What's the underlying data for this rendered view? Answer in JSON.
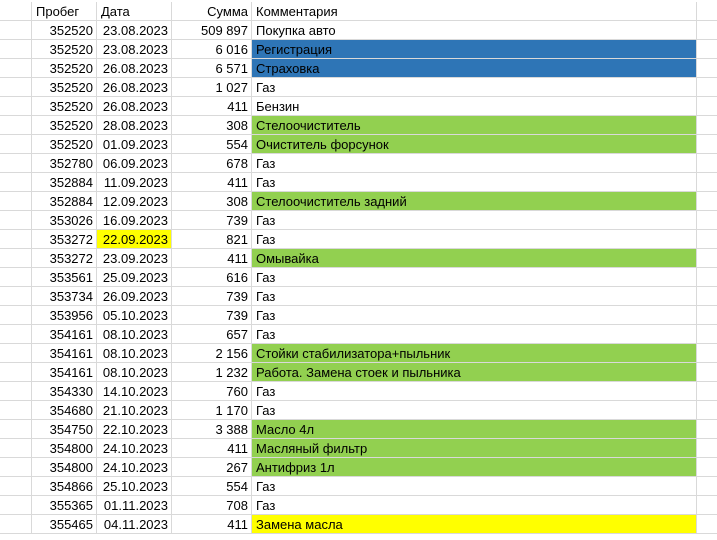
{
  "header": {
    "mileage": "Пробег",
    "date": "Дата",
    "amount": "Сумма",
    "comment": "Комментария"
  },
  "colors": {
    "blue": "#2e75b6",
    "green": "#92d050",
    "yellow": "#ffff00",
    "gridline": "#d9d9d9"
  },
  "rows": [
    {
      "mileage": "352520",
      "date": "23.08.2023",
      "amount": "509 897",
      "comment": "Покупка авто",
      "comment_fill": ""
    },
    {
      "mileage": "352520",
      "date": "23.08.2023",
      "amount": "6 016",
      "comment": "Регистрация",
      "comment_fill": "blue"
    },
    {
      "mileage": "352520",
      "date": "26.08.2023",
      "amount": "6 571",
      "comment": "Страховка",
      "comment_fill": "blue"
    },
    {
      "mileage": "352520",
      "date": "26.08.2023",
      "amount": "1 027",
      "comment": "Газ",
      "comment_fill": ""
    },
    {
      "mileage": "352520",
      "date": "26.08.2023",
      "amount": "411",
      "comment": "Бензин",
      "comment_fill": ""
    },
    {
      "mileage": "352520",
      "date": "28.08.2023",
      "amount": "308",
      "comment": "Стелоочиститель",
      "comment_fill": "green"
    },
    {
      "mileage": "352520",
      "date": "01.09.2023",
      "amount": "554",
      "comment": "Очиститель форсунок",
      "comment_fill": "green"
    },
    {
      "mileage": "352780",
      "date": "06.09.2023",
      "amount": "678",
      "comment": "Газ",
      "comment_fill": ""
    },
    {
      "mileage": "352884",
      "date": "11.09.2023",
      "amount": "411",
      "comment": "Газ",
      "comment_fill": ""
    },
    {
      "mileage": "352884",
      "date": "12.09.2023",
      "amount": "308",
      "comment": "Стелоочиститель задний",
      "comment_fill": "green"
    },
    {
      "mileage": "353026",
      "date": "16.09.2023",
      "amount": "739",
      "comment": "Газ",
      "comment_fill": ""
    },
    {
      "mileage": "353272",
      "date": "22.09.2023",
      "amount": "821",
      "comment": "Газ",
      "comment_fill": "",
      "date_fill": "yellow"
    },
    {
      "mileage": "353272",
      "date": "23.09.2023",
      "amount": "411",
      "comment": "Омывайка",
      "comment_fill": "green"
    },
    {
      "mileage": "353561",
      "date": "25.09.2023",
      "amount": "616",
      "comment": "Газ",
      "comment_fill": ""
    },
    {
      "mileage": "353734",
      "date": "26.09.2023",
      "amount": "739",
      "comment": "Газ",
      "comment_fill": ""
    },
    {
      "mileage": "353956",
      "date": "05.10.2023",
      "amount": "739",
      "comment": "Газ",
      "comment_fill": ""
    },
    {
      "mileage": "354161",
      "date": "08.10.2023",
      "amount": "657",
      "comment": "Газ",
      "comment_fill": ""
    },
    {
      "mileage": "354161",
      "date": "08.10.2023",
      "amount": "2 156",
      "comment": "Стойки стабилизатора+пыльник",
      "comment_fill": "green"
    },
    {
      "mileage": "354161",
      "date": "08.10.2023",
      "amount": "1 232",
      "comment": "Работа. Замена стоек и пыльника",
      "comment_fill": "green"
    },
    {
      "mileage": "354330",
      "date": "14.10.2023",
      "amount": "760",
      "comment": "Газ",
      "comment_fill": ""
    },
    {
      "mileage": "354680",
      "date": "21.10.2023",
      "amount": "1 170",
      "comment": "Газ",
      "comment_fill": ""
    },
    {
      "mileage": "354750",
      "date": "22.10.2023",
      "amount": "3 388",
      "comment": "Масло 4л",
      "comment_fill": "green"
    },
    {
      "mileage": "354800",
      "date": "24.10.2023",
      "amount": "411",
      "comment": "Масляный фильтр",
      "comment_fill": "green"
    },
    {
      "mileage": "354800",
      "date": "24.10.2023",
      "amount": "267",
      "comment": "Антифриз 1л",
      "comment_fill": "green"
    },
    {
      "mileage": "354866",
      "date": "25.10.2023",
      "amount": "554",
      "comment": "Газ",
      "comment_fill": ""
    },
    {
      "mileage": "355365",
      "date": "01.11.2023",
      "amount": "708",
      "comment": "Газ",
      "comment_fill": ""
    },
    {
      "mileage": "355465",
      "date": "04.11.2023",
      "amount": "411",
      "comment": "Замена масла",
      "comment_fill": "yellow"
    }
  ]
}
